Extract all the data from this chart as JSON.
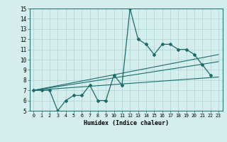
{
  "title": "",
  "xlabel": "Humidex (Indice chaleur)",
  "xlim": [
    -0.5,
    23.5
  ],
  "ylim": [
    5,
    15
  ],
  "yticks": [
    5,
    6,
    7,
    8,
    9,
    10,
    11,
    12,
    13,
    14,
    15
  ],
  "xticks": [
    0,
    1,
    2,
    3,
    4,
    5,
    6,
    7,
    8,
    9,
    10,
    11,
    12,
    13,
    14,
    15,
    16,
    17,
    18,
    19,
    20,
    21,
    22,
    23
  ],
  "background_color": "#d4eeee",
  "grid_color": "#aad4d4",
  "line_color": "#1a6b6b",
  "series_main": {
    "x": [
      0,
      1,
      2,
      3,
      4,
      5,
      6,
      7,
      8,
      9,
      10,
      11,
      12,
      13,
      14,
      15,
      16,
      17,
      18,
      19,
      20,
      21,
      22
    ],
    "y": [
      7,
      7,
      7,
      5,
      6,
      6.5,
      6.5,
      7.5,
      6,
      6,
      8.5,
      7.5,
      15,
      12,
      11.5,
      10.5,
      11.5,
      11.5,
      11,
      11,
      10.5,
      9.5,
      8.5
    ]
  },
  "line1": {
    "x": [
      0,
      23
    ],
    "y": [
      7.0,
      8.3
    ]
  },
  "line2": {
    "x": [
      0,
      23
    ],
    "y": [
      7.0,
      10.5
    ]
  },
  "line3": {
    "x": [
      0,
      23
    ],
    "y": [
      7.0,
      9.8
    ]
  }
}
